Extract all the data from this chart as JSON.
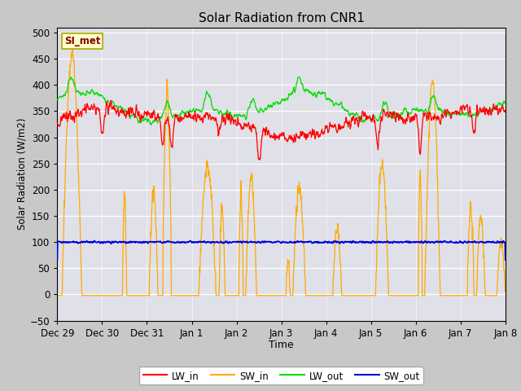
{
  "title": "Solar Radiation from CNR1",
  "xlabel": "Time",
  "ylabel": "Solar Radiation (W/m2)",
  "ylim": [
    -50,
    510
  ],
  "yticks": [
    -50,
    0,
    50,
    100,
    150,
    200,
    250,
    300,
    350,
    400,
    450,
    500
  ],
  "x_labels": [
    "Dec 29",
    "Dec 30",
    "Dec 31",
    "Jan 1",
    "Jan 2",
    "Jan 3",
    "Jan 4",
    "Jan 5",
    "Jan 6",
    "Jan 7",
    "Jan 8"
  ],
  "station_label": "SI_met",
  "colors": {
    "LW_in": "#ff0000",
    "SW_in": "#ffaa00",
    "LW_out": "#00dd00",
    "SW_out": "#0000dd",
    "fig_bg": "#c8c8c8",
    "ax_bg": "#e0e0e8"
  },
  "legend_labels": [
    "LW_in",
    "SW_in",
    "LW_out",
    "SW_out"
  ],
  "n_days": 10,
  "n_pts": 1440
}
